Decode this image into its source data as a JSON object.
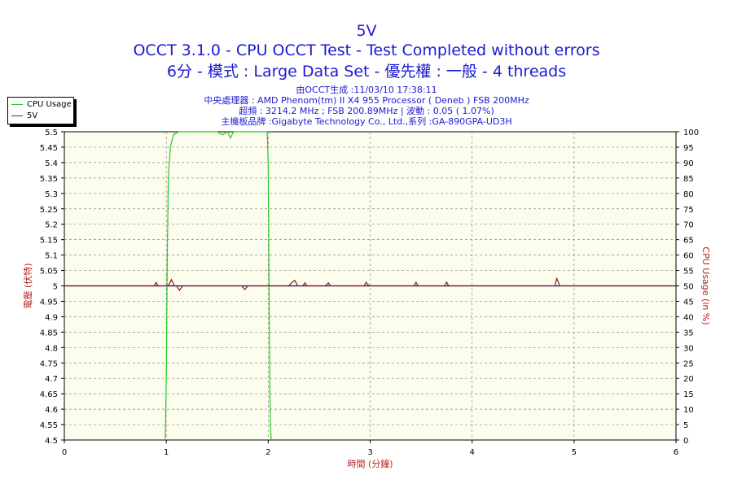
{
  "titles": {
    "line1": "5V",
    "line2": "OCCT 3.1.0 - CPU OCCT Test - Test Completed without errors",
    "line3": "6分 - 模式 : Large Data Set - 優先權 : 一般 - 4 threads"
  },
  "info": {
    "line1": "由OCCT生成 :11/03/10 17:38:11",
    "line2": "中央處理器 : AMD Phenom(tm) II X4 955 Processor ( Deneb ) FSB 200MHz",
    "line3": "超頻 : 3214.2 MHz ; FSB 200.89MHz | 波動 : 0.05 ( 1.07%)",
    "line4": "主機板品牌 :Gigabyte Technology Co., Ltd.,系列 :GA-890GPA-UD3H"
  },
  "legend": [
    {
      "label": "CPU Usage",
      "color": "#22cc22"
    },
    {
      "label": "5V",
      "color": "#8b1a1a"
    }
  ],
  "colors": {
    "title": "#1a1ad4",
    "axis_label": "#b22222",
    "plot_bg": "#fdfdee",
    "grid": "#888888",
    "reference_line": "#00008b",
    "cpu_series": "#22cc22",
    "voltage_series": "#8b1a1a"
  },
  "chart_data": {
    "type": "line",
    "xlabel": "時間 (分鐘)",
    "ylabel_left": "電壓 (伏特)",
    "ylabel_right": "CPU Usage (in %)",
    "xlim": [
      0,
      6
    ],
    "ylim_left": [
      4.5,
      5.5
    ],
    "ylim_right": [
      0,
      100
    ],
    "x_ticks": [
      0,
      1,
      2,
      3,
      4,
      5,
      6
    ],
    "y_left_ticks": [
      4.5,
      4.55,
      4.6,
      4.65,
      4.7,
      4.75,
      4.8,
      4.85,
      4.9,
      4.95,
      5,
      5.05,
      5.1,
      5.15,
      5.2,
      5.25,
      5.3,
      5.35,
      5.4,
      5.45,
      5.5
    ],
    "y_right_ticks": [
      0,
      5,
      10,
      15,
      20,
      25,
      30,
      35,
      40,
      45,
      50,
      55,
      60,
      65,
      70,
      75,
      80,
      85,
      90,
      95,
      100
    ],
    "grid": true,
    "reference_line": 5.0,
    "legend_position": "top-left",
    "series": [
      {
        "name": "CPU Usage",
        "axis": "right",
        "points": [
          [
            0.99,
            0
          ],
          [
            1.0,
            20
          ],
          [
            1.01,
            60
          ],
          [
            1.02,
            85
          ],
          [
            1.04,
            95
          ],
          [
            1.07,
            99
          ],
          [
            1.12,
            100
          ],
          [
            1.5,
            100
          ],
          [
            1.55,
            99
          ],
          [
            1.6,
            100
          ],
          [
            1.63,
            98
          ],
          [
            1.66,
            100
          ],
          [
            1.9,
            100
          ],
          [
            1.99,
            100
          ],
          [
            2.0,
            90
          ],
          [
            2.01,
            40
          ],
          [
            2.02,
            5
          ],
          [
            2.03,
            0
          ]
        ]
      },
      {
        "name": "5V",
        "axis": "left",
        "points": [
          [
            0,
            5.0
          ],
          [
            0.88,
            5.0
          ],
          [
            0.9,
            5.011
          ],
          [
            0.92,
            5.0
          ],
          [
            1.02,
            5.0
          ],
          [
            1.05,
            5.02
          ],
          [
            1.08,
            5.0
          ],
          [
            1.1,
            5.0
          ],
          [
            1.13,
            4.986
          ],
          [
            1.16,
            5.0
          ],
          [
            1.74,
            5.0
          ],
          [
            1.77,
            4.988
          ],
          [
            1.8,
            5.0
          ],
          [
            2.2,
            5.0
          ],
          [
            2.23,
            5.01
          ],
          [
            2.26,
            5.018
          ],
          [
            2.29,
            5.0
          ],
          [
            2.34,
            5.0
          ],
          [
            2.36,
            5.01
          ],
          [
            2.38,
            5.0
          ],
          [
            2.56,
            5.0
          ],
          [
            2.59,
            5.01
          ],
          [
            2.61,
            5.0
          ],
          [
            2.94,
            5.0
          ],
          [
            2.96,
            5.012
          ],
          [
            2.99,
            5.0
          ],
          [
            3.43,
            5.0
          ],
          [
            3.45,
            5.012
          ],
          [
            3.47,
            5.0
          ],
          [
            3.73,
            5.0
          ],
          [
            3.75,
            5.012
          ],
          [
            3.77,
            5.0
          ],
          [
            4.81,
            5.0
          ],
          [
            4.83,
            5.024
          ],
          [
            4.86,
            5.0
          ],
          [
            6.0,
            5.0
          ]
        ]
      }
    ]
  }
}
